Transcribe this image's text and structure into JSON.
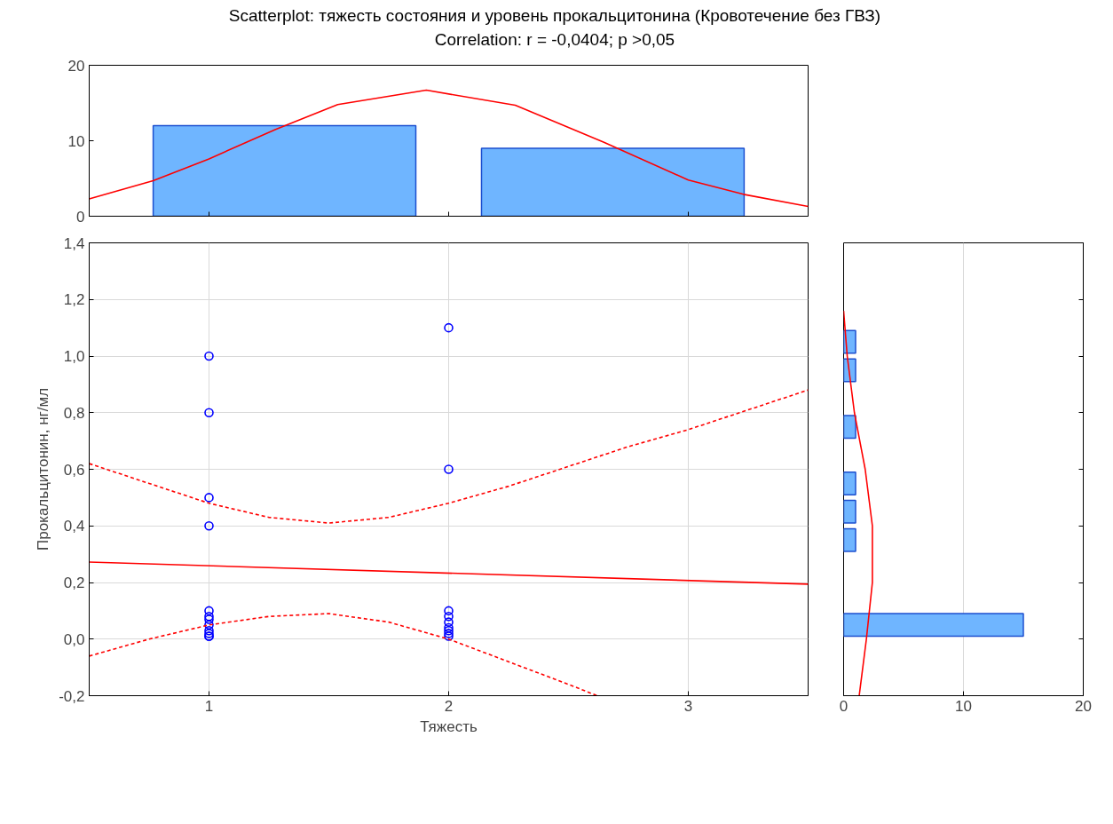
{
  "chart_data": [
    {
      "type": "histogram",
      "title": "Scatterplot: тяжесть состояния и уровень прокальцитонина (Кровотечение без ГВЗ)",
      "subtitle": "Correlation: r = -0,0404; p >0,05",
      "series": [
        {
          "bins": [
            0.63,
            2.0,
            3.37
          ],
          "values": [
            12,
            9
          ],
          "color": "#6fb5ff"
        },
        {
          "type": "line",
          "color": "#ff0000",
          "x": [
            0.5,
            0.767,
            1.0,
            1.278,
            1.537,
            1.907,
            2.278,
            2.648,
            3.0,
            3.23,
            3.5
          ],
          "values": [
            2.3,
            4.7,
            7.6,
            11.5,
            14.8,
            16.7,
            14.7,
            9.8,
            4.8,
            2.9,
            1.3
          ]
        }
      ],
      "xlim": [
        0.5,
        3.5
      ],
      "xticks": [
        {
          "value": 1,
          "label": null
        },
        {
          "value": 2,
          "label": null
        },
        {
          "value": 3,
          "label": null
        }
      ],
      "ylim": [
        0,
        20
      ],
      "yticks": [
        0,
        10,
        20
      ],
      "tick_labels": "y"
    },
    {
      "type": "scatter",
      "xlabel": "Тяжесть",
      "ylabel": "Прокальцитонин, нг/мл",
      "grid": true,
      "series": [
        {
          "marker": "circle",
          "color": "#0000ff",
          "x": [
            1,
            1,
            1,
            1,
            1,
            1,
            1,
            1,
            1,
            1,
            1,
            1,
            2,
            2,
            2,
            2,
            2,
            2,
            2,
            2,
            2
          ],
          "values": [
            1.0,
            0.8,
            0.5,
            0.4,
            0.1,
            0.08,
            0.07,
            0.05,
            0.03,
            0.02,
            0.01,
            0.01,
            1.1,
            0.6,
            0.1,
            0.08,
            0.06,
            0.04,
            0.03,
            0.02,
            0.01
          ]
        },
        {
          "type": "line",
          "color": "#ff0000",
          "line_style": "solid",
          "x": [
            0.5,
            3.5
          ],
          "values": [
            0.272,
            0.194
          ]
        },
        {
          "type": "line",
          "color": "#ff0000",
          "line_style": "dashed",
          "x": [
            0.5,
            0.75,
            1.0,
            1.25,
            1.5,
            1.75,
            2.0,
            2.25,
            2.5,
            2.75,
            3.0,
            3.25,
            3.5
          ],
          "values": [
            0.62,
            0.55,
            0.48,
            0.43,
            0.41,
            0.43,
            0.48,
            0.54,
            0.61,
            0.68,
            0.74,
            0.81,
            0.88
          ]
        },
        {
          "type": "line",
          "color": "#ff0000",
          "line_style": "dashed",
          "x": [
            0.5,
            0.75,
            1.0,
            1.25,
            1.5,
            1.75,
            2.0,
            2.25,
            2.5,
            2.62
          ],
          "values": [
            -0.06,
            0.0,
            0.05,
            0.08,
            0.09,
            0.06,
            0.0,
            -0.08,
            -0.16,
            -0.2
          ]
        }
      ],
      "xlim": [
        0.5,
        3.5
      ],
      "xticks": [
        1,
        2,
        3
      ],
      "ylim": [
        -0.2,
        1.4
      ],
      "yticks": [
        {
          "value": -0.2,
          "label": "-0,2"
        },
        {
          "value": 0,
          "label": "0,0"
        },
        {
          "value": 0.2,
          "label": "0,2"
        },
        {
          "value": 0.4,
          "label": "0,4"
        },
        {
          "value": 0.6,
          "label": "0,6"
        },
        {
          "value": 0.8,
          "label": "0,8"
        },
        {
          "value": 1.0,
          "label": "1,0"
        },
        {
          "value": 1.2,
          "label": "1,2"
        },
        {
          "value": 1.4,
          "label": "1,4"
        }
      ]
    },
    {
      "type": "histogram",
      "orientation": "horizontal",
      "grid": "x",
      "tick_labels": "x",
      "series": [
        {
          "bins": [
            0,
            0.1,
            0.2,
            0.3,
            0.4,
            0.5,
            0.6,
            0.7,
            0.8,
            0.9,
            1.0,
            1.1
          ],
          "values": [
            15,
            0,
            0,
            1,
            1,
            1,
            0,
            1,
            0,
            1,
            1
          ],
          "color": "#6fb5ff"
        },
        {
          "type": "line",
          "color": "#ff0000",
          "x": [
            -0.2,
            0.0,
            0.2,
            0.3,
            0.4,
            0.6,
            0.8,
            1.0,
            1.16
          ],
          "values": [
            1.3,
            1.9,
            2.4,
            2.4,
            2.4,
            1.8,
            0.9,
            0.3,
            0.0
          ]
        }
      ],
      "xlim": [
        0,
        20
      ],
      "xticks": [
        0,
        10,
        20
      ],
      "ylim": [
        -0.2,
        1.4
      ],
      "yticks": [
        {
          "value": -0.2,
          "label": null
        },
        {
          "value": 0,
          "label": null
        },
        {
          "value": 0.2,
          "label": null
        },
        {
          "value": 0.4,
          "label": null
        },
        {
          "value": 0.6,
          "label": null
        },
        {
          "value": 0.8,
          "label": null
        },
        {
          "value": 1.0,
          "label": null
        },
        {
          "value": 1.2,
          "label": null
        },
        {
          "value": 1.4,
          "label": null
        }
      ]
    }
  ]
}
